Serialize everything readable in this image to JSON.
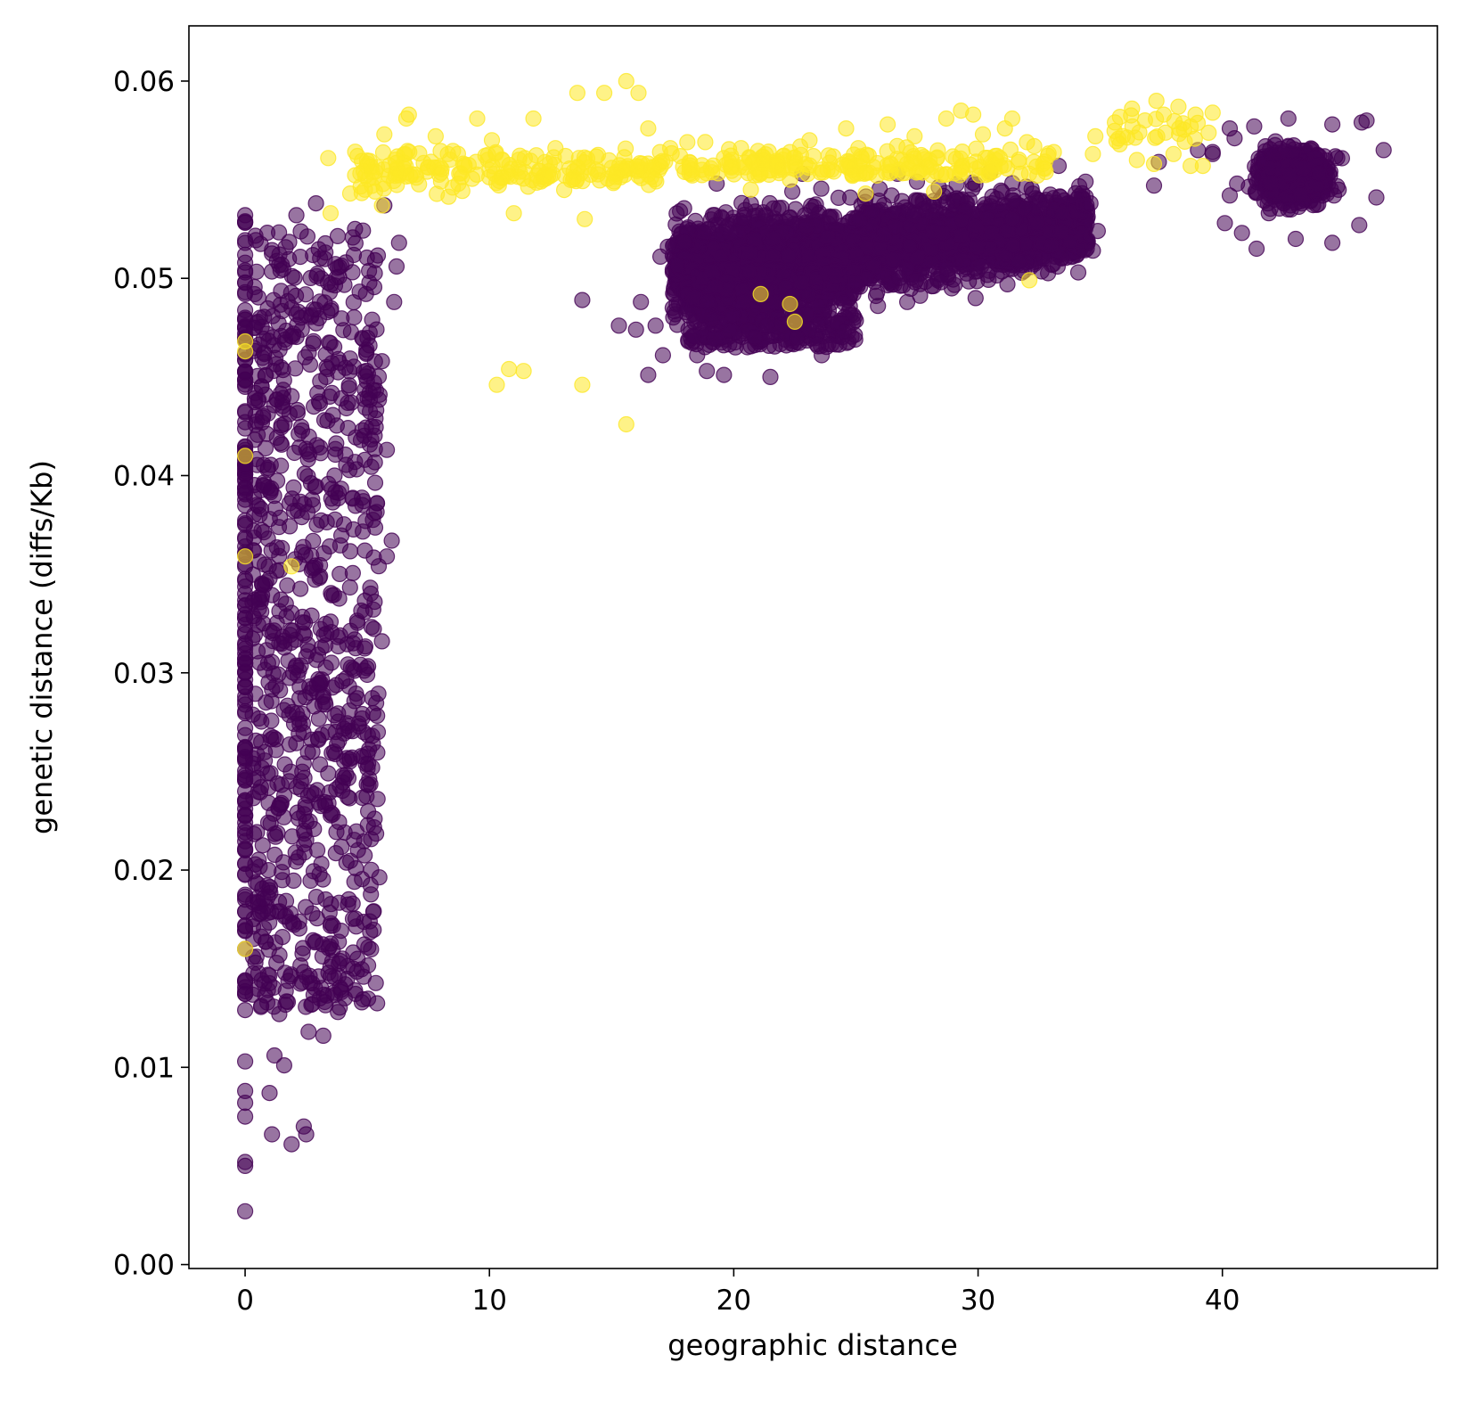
{
  "chart_data": {
    "type": "scatter",
    "title": "",
    "xlabel": "geographic distance",
    "ylabel": "genetic distance (diffs/Kb)",
    "xlim": [
      -2.3,
      48.8
    ],
    "ylim": [
      -0.0002,
      0.0628
    ],
    "xticks": [
      0,
      10,
      20,
      30,
      40
    ],
    "xtick_labels": [
      "0",
      "10",
      "20",
      "30",
      "40"
    ],
    "yticks": [
      0.0,
      0.01,
      0.02,
      0.03,
      0.04,
      0.05,
      0.06
    ],
    "ytick_labels": [
      "0.00",
      "0.01",
      "0.02",
      "0.03",
      "0.04",
      "0.05",
      "0.06"
    ],
    "grid": false,
    "legend": "none",
    "marker_alpha": 0.55,
    "series": [
      {
        "color": "#440154",
        "clusters": [
          {
            "x_range": [
              0,
              0.05
            ],
            "y_range": [
              0.0027,
              0.0532
            ]
          },
          {
            "x_range": [
              0.2,
              6.2
            ],
            "y_range": [
              0.006,
              0.0535
            ]
          },
          {
            "x_range": [
              14.5,
              36
            ],
            "y_range": [
              0.045,
              0.0555
            ]
          },
          {
            "x_range": [
              36.5,
              46.5
            ],
            "y_range": [
              0.0515,
              0.058
            ]
          }
        ],
        "points": [
          [
            0,
            0.0027
          ],
          [
            0,
            0.005
          ],
          [
            0,
            0.0052
          ],
          [
            0,
            0.0075
          ],
          [
            0,
            0.0082
          ],
          [
            0,
            0.0088
          ],
          [
            0,
            0.0103
          ],
          [
            0,
            0.0129
          ],
          [
            0,
            0.0144
          ],
          [
            0,
            0.016
          ],
          [
            0,
            0.0172
          ],
          [
            0,
            0.0185
          ],
          [
            0,
            0.0198
          ],
          [
            0,
            0.021
          ],
          [
            0,
            0.0228
          ],
          [
            0,
            0.024
          ],
          [
            0,
            0.0262
          ],
          [
            0,
            0.0272
          ],
          [
            0,
            0.0288
          ],
          [
            0,
            0.0307
          ],
          [
            0,
            0.0315
          ],
          [
            0,
            0.0334
          ],
          [
            0,
            0.0355
          ],
          [
            0,
            0.0375
          ],
          [
            0,
            0.0393
          ],
          [
            0,
            0.0413
          ],
          [
            0,
            0.0432
          ],
          [
            0,
            0.0445
          ],
          [
            0,
            0.0472
          ],
          [
            0,
            0.0492
          ],
          [
            0,
            0.0503
          ],
          [
            0,
            0.0518
          ],
          [
            0,
            0.0532
          ],
          [
            1.6,
            0.0101
          ],
          [
            1.2,
            0.0106
          ],
          [
            1.0,
            0.0087
          ],
          [
            1.1,
            0.0066
          ],
          [
            1.9,
            0.0061
          ],
          [
            2.5,
            0.0066
          ],
          [
            2.4,
            0.007
          ],
          [
            3.2,
            0.0116
          ],
          [
            2.6,
            0.0118
          ],
          [
            1.4,
            0.0127
          ],
          [
            3.8,
            0.0128
          ],
          [
            4.5,
            0.0139
          ],
          [
            3.5,
            0.0146
          ],
          [
            4.6,
            0.0155
          ],
          [
            5.1,
            0.0174
          ],
          [
            4.4,
            0.0183
          ],
          [
            1.5,
            0.0199
          ],
          [
            5.3,
            0.0226
          ],
          [
            4.2,
            0.0237
          ],
          [
            5.2,
            0.0252
          ],
          [
            3.4,
            0.0249
          ],
          [
            2.4,
            0.0254
          ],
          [
            3.0,
            0.0266
          ],
          [
            4.2,
            0.0273
          ],
          [
            5.0,
            0.0299
          ],
          [
            5.6,
            0.0316
          ],
          [
            5.3,
            0.0336
          ],
          [
            5.8,
            0.0359
          ],
          [
            6.0,
            0.0367
          ],
          [
            5.4,
            0.0386
          ],
          [
            5.8,
            0.0413
          ],
          [
            4.9,
            0.0408
          ],
          [
            5.5,
            0.0441
          ],
          [
            5.6,
            0.0458
          ],
          [
            5.2,
            0.0479
          ],
          [
            6.1,
            0.0488
          ],
          [
            6.2,
            0.0506
          ],
          [
            6.3,
            0.0518
          ],
          [
            5.7,
            0.0537
          ],
          [
            2.9,
            0.0538
          ],
          [
            2.1,
            0.0532
          ],
          [
            4.5,
            0.0525
          ],
          [
            13.8,
            0.0489
          ],
          [
            15.3,
            0.0476
          ],
          [
            16.0,
            0.0474
          ],
          [
            16.2,
            0.0488
          ],
          [
            16.5,
            0.0451
          ],
          [
            16.8,
            0.0476
          ],
          [
            17.1,
            0.0461
          ],
          [
            17.5,
            0.0485
          ],
          [
            18.5,
            0.0461
          ],
          [
            18.9,
            0.0453
          ],
          [
            19.6,
            0.0451
          ],
          [
            21.5,
            0.045
          ],
          [
            23.6,
            0.0461
          ],
          [
            24.5,
            0.0473
          ],
          [
            25.9,
            0.0486
          ],
          [
            27.1,
            0.0488
          ],
          [
            28.1,
            0.0496
          ],
          [
            29.9,
            0.049
          ],
          [
            31.2,
            0.0497
          ],
          [
            34.1,
            0.0503
          ],
          [
            34.7,
            0.0514
          ],
          [
            34.9,
            0.0524
          ],
          [
            34.6,
            0.0538
          ],
          [
            34.4,
            0.0549
          ],
          [
            33.3,
            0.0557
          ],
          [
            30.5,
            0.0554
          ],
          [
            27.5,
            0.0549
          ],
          [
            26.7,
            0.0553
          ],
          [
            22.8,
            0.0553
          ],
          [
            19.3,
            0.0548
          ],
          [
            17.3,
            0.0516
          ],
          [
            17.0,
            0.0511
          ],
          [
            17.8,
            0.0534
          ],
          [
            37.2,
            0.0547
          ],
          [
            37.4,
            0.0559
          ],
          [
            39.0,
            0.0565
          ],
          [
            39.6,
            0.0564
          ],
          [
            40.6,
            0.0548
          ],
          [
            40.3,
            0.0542
          ],
          [
            40.1,
            0.0528
          ],
          [
            40.8,
            0.0523
          ],
          [
            41.4,
            0.0515
          ],
          [
            43.0,
            0.052
          ],
          [
            44.5,
            0.0518
          ],
          [
            45.6,
            0.0527
          ],
          [
            46.3,
            0.0541
          ],
          [
            46.6,
            0.0565
          ],
          [
            45.7,
            0.0579
          ],
          [
            45.9,
            0.058
          ],
          [
            44.5,
            0.0578
          ],
          [
            42.7,
            0.0581
          ],
          [
            41.3,
            0.0577
          ],
          [
            40.5,
            0.0571
          ],
          [
            40.3,
            0.0576
          ],
          [
            39.6,
            0.0563
          ],
          [
            41.9,
            0.0533
          ],
          [
            43.3,
            0.0556
          ]
        ]
      },
      {
        "color": "#fde725",
        "clusters": [
          {
            "x_range": [
              3,
              33
            ],
            "y_range": [
              0.053,
              0.06
            ]
          },
          {
            "x_range": [
              34.5,
              39.5
            ],
            "y_range": [
              0.0555,
              0.059
            ]
          }
        ],
        "points": [
          [
            0,
            0.016
          ],
          [
            0,
            0.0359
          ],
          [
            0,
            0.041
          ],
          [
            0,
            0.0463
          ],
          [
            0,
            0.0468
          ],
          [
            1.9,
            0.0354
          ],
          [
            10.3,
            0.0446
          ],
          [
            10.8,
            0.0454
          ],
          [
            11.4,
            0.0453
          ],
          [
            13.8,
            0.0446
          ],
          [
            15.6,
            0.0426
          ],
          [
            21.1,
            0.0492
          ],
          [
            22.3,
            0.0487
          ],
          [
            22.5,
            0.0478
          ],
          [
            32.1,
            0.0499
          ],
          [
            20.7,
            0.0545
          ],
          [
            22.3,
            0.055
          ],
          [
            25.4,
            0.0543
          ],
          [
            3.4,
            0.0561
          ],
          [
            3.5,
            0.0533
          ],
          [
            4.3,
            0.0543
          ],
          [
            4.6,
            0.0562
          ],
          [
            5.6,
            0.0537
          ],
          [
            5.7,
            0.0573
          ],
          [
            6.6,
            0.0581
          ],
          [
            6.7,
            0.0583
          ],
          [
            7.8,
            0.0572
          ],
          [
            8.3,
            0.0563
          ],
          [
            8.5,
            0.0546
          ],
          [
            9.5,
            0.0581
          ],
          [
            10.1,
            0.057
          ],
          [
            11.0,
            0.0533
          ],
          [
            11.8,
            0.0581
          ],
          [
            12.7,
            0.0566
          ],
          [
            13.1,
            0.0552
          ],
          [
            13.6,
            0.0594
          ],
          [
            13.9,
            0.053
          ],
          [
            14.7,
            0.0594
          ],
          [
            15.1,
            0.0553
          ],
          [
            15.6,
            0.06
          ],
          [
            16.1,
            0.0594
          ],
          [
            16.5,
            0.0576
          ],
          [
            16.7,
            0.0555
          ],
          [
            17.4,
            0.0566
          ],
          [
            18.1,
            0.0569
          ],
          [
            18.7,
            0.0555
          ],
          [
            19.6,
            0.0561
          ],
          [
            20.3,
            0.0566
          ],
          [
            21.1,
            0.0553
          ],
          [
            21.8,
            0.0559
          ],
          [
            22.3,
            0.0564
          ],
          [
            23.1,
            0.057
          ],
          [
            24.0,
            0.0555
          ],
          [
            24.6,
            0.0576
          ],
          [
            25.1,
            0.0566
          ],
          [
            26.3,
            0.0578
          ],
          [
            26.9,
            0.056
          ],
          [
            27.4,
            0.0572
          ],
          [
            28.2,
            0.0544
          ],
          [
            28.7,
            0.0581
          ],
          [
            29.3,
            0.0585
          ],
          [
            29.8,
            0.0583
          ],
          [
            30.2,
            0.0573
          ],
          [
            30.7,
            0.0562
          ],
          [
            31.1,
            0.0576
          ],
          [
            31.4,
            0.0581
          ],
          [
            32.0,
            0.0569
          ],
          [
            32.3,
            0.0567
          ],
          [
            34.8,
            0.0572
          ],
          [
            35.6,
            0.0579
          ],
          [
            36.3,
            0.0586
          ],
          [
            36.6,
            0.0574
          ],
          [
            37.3,
            0.059
          ],
          [
            37.6,
            0.0583
          ],
          [
            38.2,
            0.0587
          ],
          [
            38.9,
            0.0583
          ],
          [
            39.6,
            0.0584
          ],
          [
            36.5,
            0.056
          ],
          [
            37.2,
            0.0558
          ],
          [
            38.0,
            0.0563
          ],
          [
            38.7,
            0.0557
          ],
          [
            39.2,
            0.0557
          ],
          [
            33.1,
            0.0564
          ],
          [
            34.7,
            0.0563
          ]
        ]
      }
    ]
  }
}
